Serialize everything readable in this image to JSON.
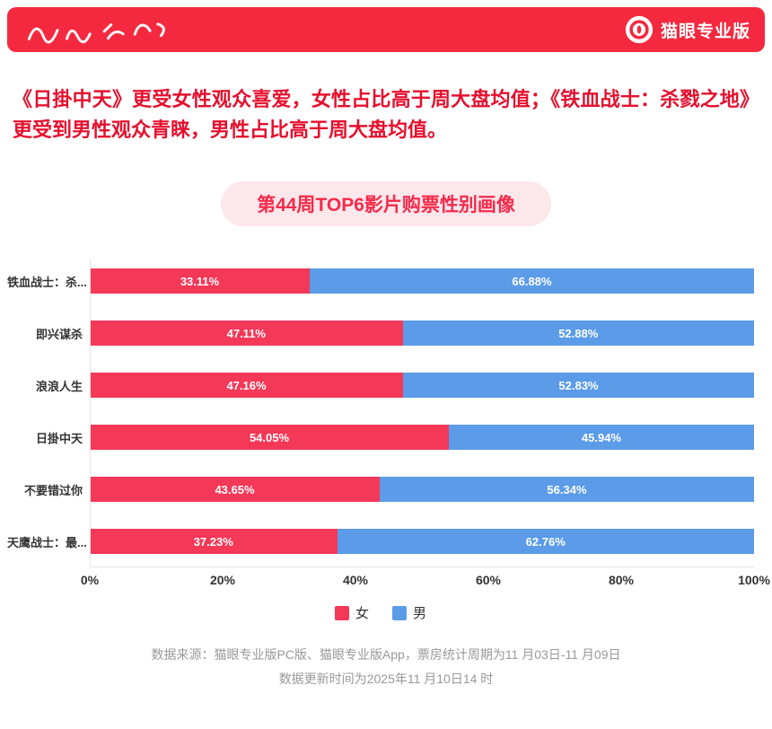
{
  "colors": {
    "header_bg": "#F4293F",
    "female": "#F43857",
    "male": "#5B9BE8",
    "intro_text": "#E5102E",
    "pill_bg": "#FCE7EB",
    "pill_text": "#F42B4B",
    "axis_line": "#E6E6E6",
    "tick_text": "#333333",
    "footer_text": "#999999"
  },
  "header": {
    "brand": "猫眼专业版"
  },
  "intro": "《日掛中天》更受女性观众喜爱，女性占比高于周大盘均值；《铁血战士：杀戮之地》更受到男性观众青睐，男性占比高于周大盘均值。",
  "chart_title": "第44周TOP6影片购票性别画像",
  "chart_data": {
    "type": "bar",
    "orientation": "horizontal",
    "stacked": true,
    "title": "第44周TOP6影片购票性别画像",
    "categories": [
      "铁血战士：杀...",
      "即兴谋杀",
      "浪浪人生",
      "日掛中天",
      "不要错过你",
      "天鹰战士：最..."
    ],
    "series": [
      {
        "name": "女",
        "color": "#F43857",
        "values": [
          33.11,
          47.11,
          47.16,
          54.05,
          43.65,
          37.23
        ]
      },
      {
        "name": "男",
        "color": "#5B9BE8",
        "values": [
          66.88,
          52.88,
          52.83,
          45.94,
          56.34,
          62.76
        ]
      }
    ],
    "x_ticks": [
      "0%",
      "20%",
      "40%",
      "60%",
      "80%",
      "100%"
    ],
    "xlim": [
      0,
      100
    ],
    "value_suffix": "%",
    "legend_position": "bottom",
    "grid": false
  },
  "footer": {
    "line1": "数据来源：猫眼专业版PC版、猫眼专业版App，票房统计周期为11 月03日-11 月09日",
    "line2": "数据更新时间为2025年11 月10日14 时"
  }
}
